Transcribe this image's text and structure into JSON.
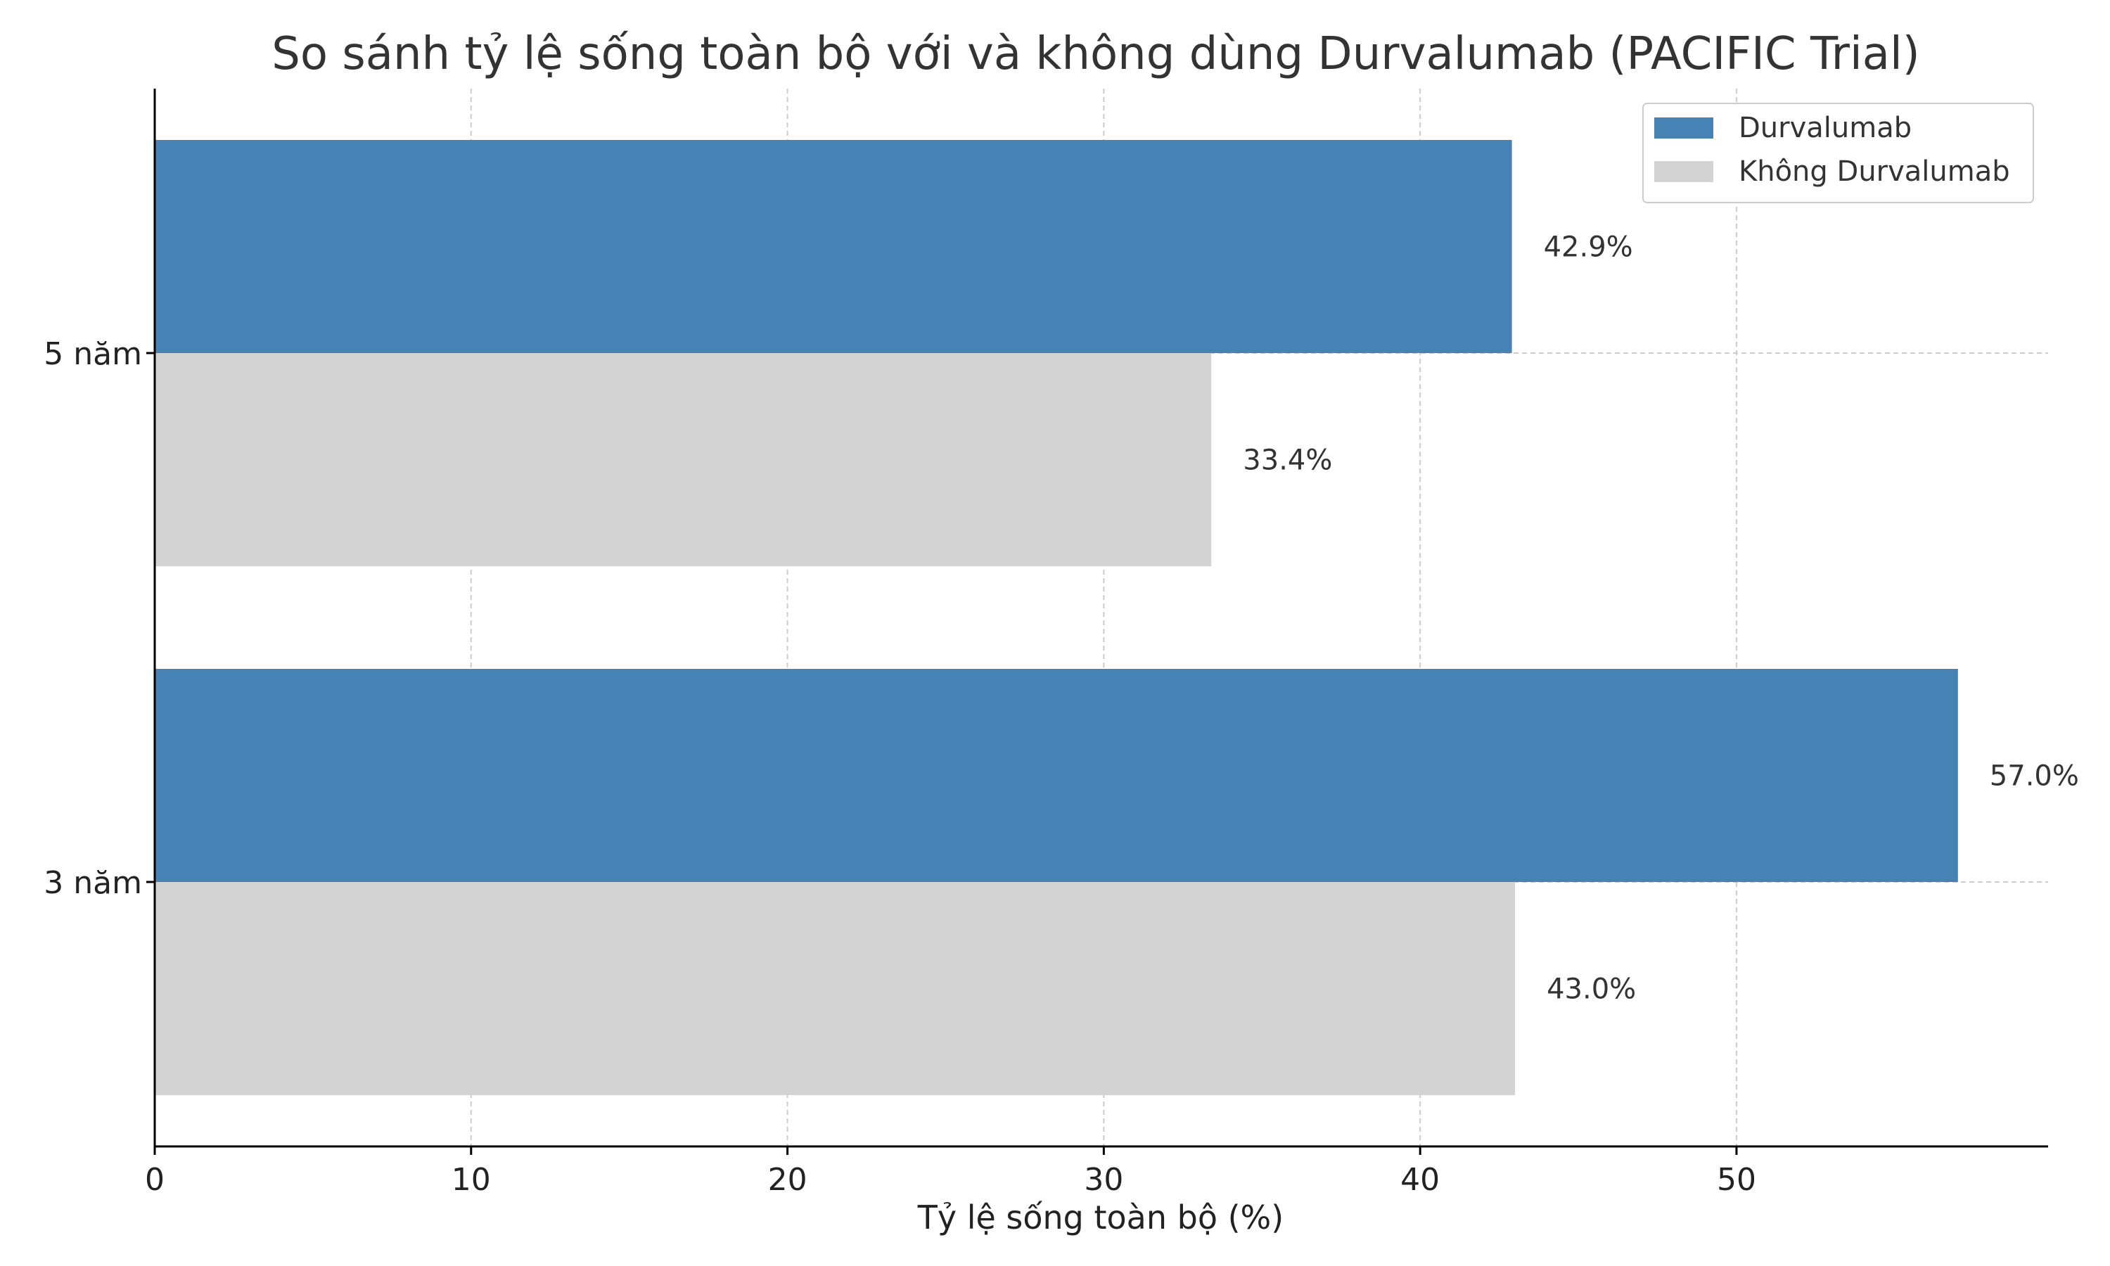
{
  "chart_data": {
    "type": "bar",
    "orientation": "horizontal",
    "title": "So sánh tỷ lệ sống toàn bộ với và không dùng Durvalumab (PACIFIC Trial)",
    "xlabel": "Tỷ lệ sống toàn bộ (%)",
    "ylabel": "",
    "categories": [
      "5 năm",
      "3 năm"
    ],
    "series": [
      {
        "name": "Durvalumab",
        "color": "#4682B4",
        "values": [
          42.9,
          57.0
        ],
        "labels": [
          "42.9%",
          "57.0%"
        ]
      },
      {
        "name": "Không Durvalumab",
        "color": "#D3D3D3",
        "values": [
          33.4,
          43.0
        ],
        "labels": [
          "33.4%",
          "43.0%"
        ]
      }
    ],
    "xlim": [
      0,
      59.85
    ],
    "xticks": [
      0,
      10,
      20,
      30,
      40,
      50
    ],
    "grid": true,
    "legend_position": "top-right"
  }
}
